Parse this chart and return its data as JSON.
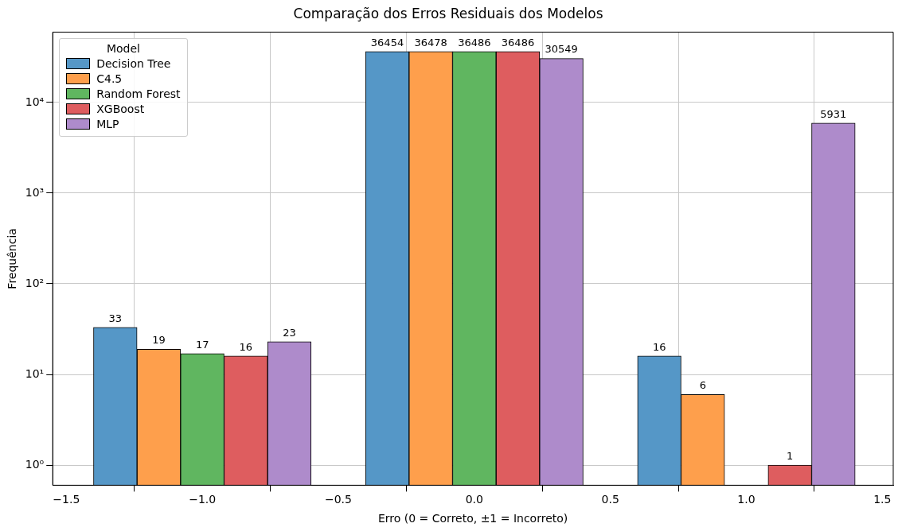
{
  "chart_data": {
    "type": "bar",
    "title": "Comparação dos Erros Residuais dos Modelos",
    "xlabel": "Erro (0 = Correto, ±1 = Incorreto)",
    "ylabel": "Frequência",
    "legend_title": "Model",
    "log": "y",
    "grid": true,
    "legend": "top left",
    "data_labels": true,
    "xlim": [
      -1.55,
      1.54
    ],
    "xticks": [
      {
        "value": -1.5,
        "label": "−1.5"
      },
      {
        "value": -1,
        "label": "−1.0"
      },
      {
        "value": -0.5,
        "label": "−0.5"
      },
      {
        "value": 0,
        "label": "0.0"
      },
      {
        "value": 0.5,
        "label": "0.5"
      },
      {
        "value": 1,
        "label": "1.0"
      },
      {
        "value": 1.5,
        "label": "1.5"
      }
    ],
    "ylim": [
      0.6,
      59700
    ],
    "yticks": [
      {
        "value": 1,
        "label": "10⁰"
      },
      {
        "value": 10,
        "label": "10¹"
      },
      {
        "value": 100,
        "label": "10²"
      },
      {
        "value": 1000,
        "label": "10³"
      },
      {
        "value": 10000,
        "label": "10⁴"
      }
    ],
    "series": [
      {
        "name": "Decision Tree",
        "color": "#5597c7",
        "x": [
          -1.32,
          -0.32,
          0.68
        ],
        "values": [
          33,
          36454,
          16
        ]
      },
      {
        "name": "C4.5",
        "color": "#fe9f4c",
        "x": [
          -1.16,
          -0.16,
          0.84
        ],
        "values": [
          19,
          36478,
          6
        ]
      },
      {
        "name": "Random Forest",
        "color": "#60b660",
        "x": [
          -1,
          0,
          null
        ],
        "values": [
          17,
          36486,
          null
        ]
      },
      {
        "name": "XGBoost",
        "color": "#de5d5f",
        "x": [
          -0.84,
          0.16,
          1.16
        ],
        "values": [
          16,
          36486,
          1
        ]
      },
      {
        "name": "MLP",
        "color": "#ae8bcb",
        "x": [
          -0.68,
          0.32,
          1.32
        ],
        "values": [
          23,
          30549,
          5931
        ]
      }
    ]
  }
}
